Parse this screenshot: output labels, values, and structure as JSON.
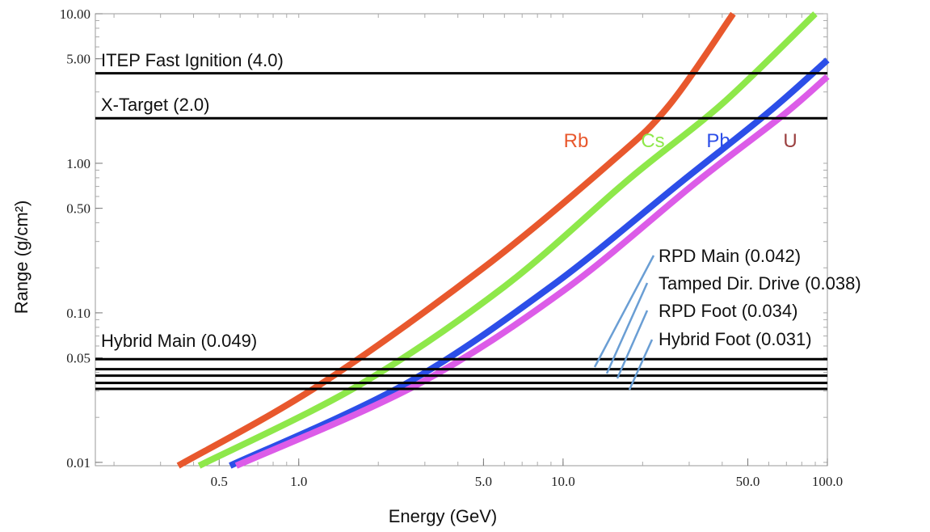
{
  "chart_data": {
    "type": "line",
    "xlabel": "Energy (GeV)",
    "ylabel": "Range (g/cm²)",
    "x_scale": "log",
    "y_scale": "log",
    "xlim": [
      0.17,
      100
    ],
    "ylim": [
      0.0095,
      10
    ],
    "x_ticks": [
      {
        "value": 0.5,
        "label": "0.5"
      },
      {
        "value": 1,
        "label": "1.0"
      },
      {
        "value": 5,
        "label": "5.0"
      },
      {
        "value": 10,
        "label": "10.0"
      },
      {
        "value": 50,
        "label": "50.0"
      },
      {
        "value": 100,
        "label": "100.0"
      }
    ],
    "y_ticks": [
      {
        "value": 0.01,
        "label": "0.01"
      },
      {
        "value": 0.05,
        "label": "0.05"
      },
      {
        "value": 0.1,
        "label": "0.10"
      },
      {
        "value": 0.5,
        "label": "0.50"
      },
      {
        "value": 1,
        "label": "1.00"
      },
      {
        "value": 5,
        "label": "5.00"
      },
      {
        "value": 10,
        "label": "10.00"
      }
    ],
    "series": [
      {
        "name": "Rb",
        "color": "#e8582d",
        "x": [
          0.35,
          1.2,
          5.0,
          15.0,
          25.0,
          44.0
        ],
        "y": [
          0.0095,
          0.033,
          0.2,
          1.0,
          2.4,
          10.0
        ]
      },
      {
        "name": "Cs",
        "color": "#8ee84a",
        "x": [
          0.42,
          1.7,
          6.0,
          18.0,
          40.0,
          90.0
        ],
        "y": [
          0.0095,
          0.033,
          0.15,
          0.8,
          2.5,
          10.0
        ]
      },
      {
        "name": "Pb",
        "color": "#2c4ee8",
        "x": [
          0.55,
          2.5,
          9.0,
          28.0,
          60.0,
          100.0
        ],
        "y": [
          0.0095,
          0.033,
          0.15,
          0.75,
          2.2,
          4.9
        ]
      },
      {
        "name": "U",
        "color": "#dc5ce8",
        "x": [
          0.58,
          2.8,
          10.0,
          32.0,
          68.0,
          100.0
        ],
        "y": [
          0.0095,
          0.033,
          0.14,
          0.75,
          2.1,
          3.8
        ]
      }
    ],
    "series_label_color_u": "#9b4040",
    "hlines": [
      {
        "y": 4.0,
        "label": "ITEP  Fast Ignition (4.0)"
      },
      {
        "y": 2.0,
        "label": "X-Target (2.0)"
      },
      {
        "y": 0.049,
        "label": "Hybrid Main (0.049)"
      },
      {
        "y": 0.042,
        "label": "RPD Main (0.042)"
      },
      {
        "y": 0.038,
        "label": "Tamped Dir. Drive (0.038)"
      },
      {
        "y": 0.034,
        "label": "RPD Foot (0.034)"
      },
      {
        "y": 0.031,
        "label": "Hybrid Foot (0.031)"
      }
    ],
    "grid": false,
    "leader_color": "#6a9ed4"
  }
}
